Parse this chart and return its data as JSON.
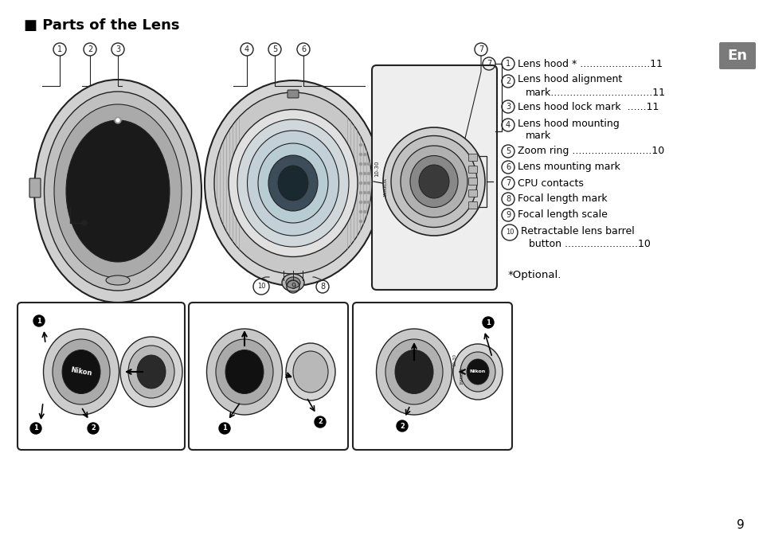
{
  "title": "■ Parts of the Lens",
  "background_color": "#ffffff",
  "page_number": "9",
  "en_badge_color": "#7a7a7a",
  "line_color": "#222222",
  "gray_light": "#d8d8d8",
  "gray_mid": "#b8b8b8",
  "gray_dark": "#888888",
  "gray_darker": "#555555",
  "gray_darkest": "#333333",
  "items": [
    {
      "num": "1",
      "lines": [
        "Lens hood * ......................11"
      ]
    },
    {
      "num": "2",
      "lines": [
        "Lens hood alignment",
        "     mark................................11"
      ]
    },
    {
      "num": "3",
      "lines": [
        "Lens hood lock mark  ......11"
      ]
    },
    {
      "num": "4",
      "lines": [
        "Lens hood mounting",
        "     mark"
      ]
    },
    {
      "num": "5",
      "lines": [
        "Zoom ring .........................10"
      ]
    },
    {
      "num": "6",
      "lines": [
        "Lens mounting mark"
      ]
    },
    {
      "num": "7",
      "lines": [
        "CPU contacts"
      ]
    },
    {
      "num": "8",
      "lines": [
        "Focal length mark"
      ]
    },
    {
      "num": "9",
      "lines": [
        "Focal length scale"
      ]
    },
    {
      "num": "10",
      "lines": [
        "Retractable lens barrel",
        "      button .......................10"
      ]
    }
  ]
}
